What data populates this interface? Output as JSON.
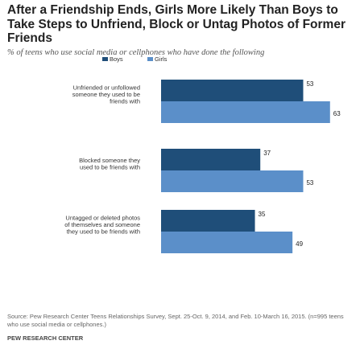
{
  "title": "After a Friendship Ends, Girls More Likely Than Boys to Take Steps to Unfriend, Block or Untag Photos of Former Friends",
  "subtitle": "% of teens who use social media or cellphones who have done the following",
  "source": "Source: Pew Research Center Teens Relationships Survey, Sept. 25-Oct. 9, 2014, and Feb. 10-March 16, 2015. (n=995 teens who use social media or cellphones.)",
  "org": "PEW RESEARCH CENTER",
  "colors": {
    "boys": "#1f4e79",
    "girls": "#5b8fc9"
  },
  "chart_data": {
    "type": "bar",
    "orientation": "horizontal",
    "categories": [
      [
        "Unfriended or unfollowed",
        "someone they used to be",
        "friends with"
      ],
      [
        "Blocked someone they",
        "used to be friends with"
      ],
      [
        "Untagged or deleted photos",
        "of themselves and someone",
        "they used to be friends with"
      ]
    ],
    "series": [
      {
        "name": "Boys",
        "values": [
          53,
          37,
          35
        ]
      },
      {
        "name": "Girls",
        "values": [
          63,
          53,
          49
        ]
      }
    ],
    "xlim": [
      0,
      100
    ],
    "legend": "top",
    "grid": false
  }
}
